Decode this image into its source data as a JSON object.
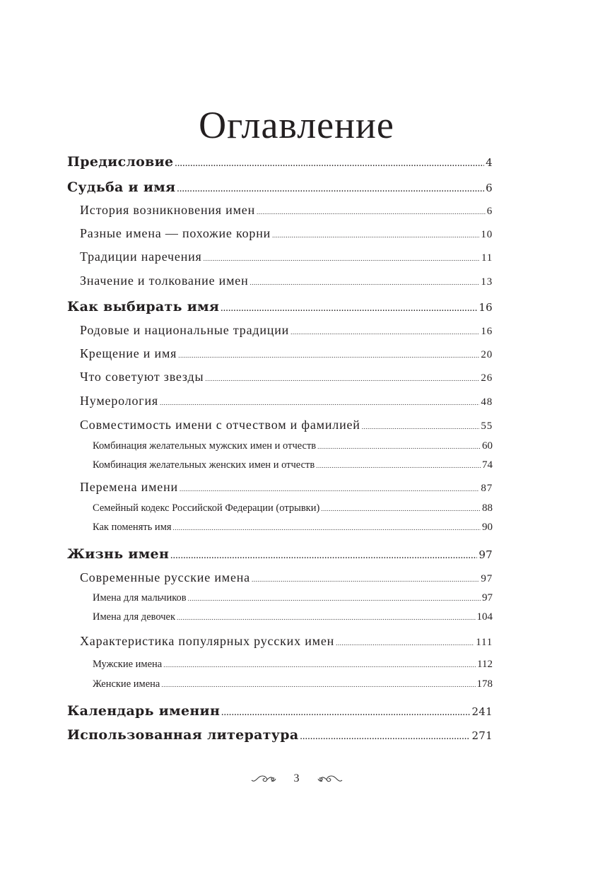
{
  "title": "Оглавление",
  "entries": [
    {
      "label": "Предисловие",
      "page": "4",
      "level": 1
    },
    {
      "label": "Судьба и имя",
      "page": "6",
      "level": 1
    },
    {
      "label": "История возникновения имен",
      "page": "6",
      "level": 2
    },
    {
      "label": "Разные имена — похожие корни",
      "page": "10",
      "level": 2
    },
    {
      "label": "Традиции наречения",
      "page": "11",
      "level": 2
    },
    {
      "label": "Значение и толкование имен",
      "page": "13",
      "level": 2
    },
    {
      "label": "Как выбирать имя",
      "page": "16",
      "level": 1
    },
    {
      "label": "Родовые и национальные традиции",
      "page": "16",
      "level": 2
    },
    {
      "label": "Крещение и имя",
      "page": "20",
      "level": 2
    },
    {
      "label": "Что советуют звезды",
      "page": "26",
      "level": 2
    },
    {
      "label": "Нумерология",
      "page": "48",
      "level": 2
    },
    {
      "label": "Совместимость имени с отчеством и фамилией",
      "page": "55",
      "level": 2
    },
    {
      "label": "Комбинация желательных мужских имен и отчеств",
      "page": "60",
      "level": 3
    },
    {
      "label": "Комбинация желательных женских имен и отчеств",
      "page": "74",
      "level": 3
    },
    {
      "label": "Перемена имени",
      "page": "87",
      "level": 2
    },
    {
      "label": "Семейный кодекс Российской Федерации (отрывки)",
      "page": "88",
      "level": 3
    },
    {
      "label": "Как поменять имя",
      "page": "90",
      "level": 3
    },
    {
      "label": "Жизнь имен",
      "page": "97",
      "level": 1
    },
    {
      "label": "Современные русские имена",
      "page": "97",
      "level": 2
    },
    {
      "label": "Имена для мальчиков",
      "page": "97",
      "level": 3
    },
    {
      "label": "Имена для девочек",
      "page": "104",
      "level": 3
    },
    {
      "label": "Характеристика популярных русских имен",
      "page": "111",
      "level": 2
    },
    {
      "label": "Мужские имена",
      "page": "112",
      "level": 3
    },
    {
      "label": "Женские имена",
      "page": "178",
      "level": 3
    },
    {
      "label": "Календарь именин",
      "page": "241",
      "level": 1
    },
    {
      "label": "Использованная литература",
      "page": "271",
      "level": 1
    }
  ],
  "footer": {
    "page_number": "3",
    "ornament_icon": "flourish-ornament"
  }
}
